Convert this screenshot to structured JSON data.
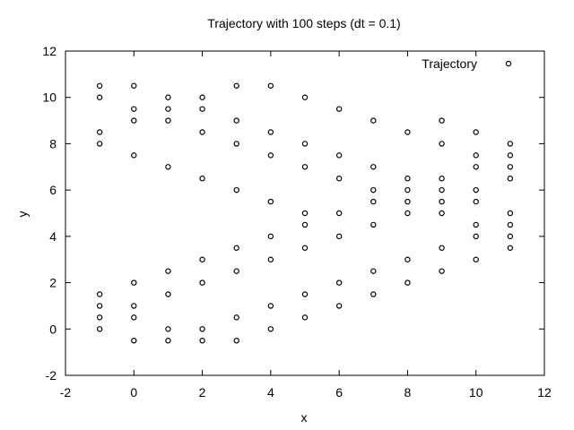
{
  "chart_data": {
    "type": "scatter",
    "title": "Trajectory with 100 steps (dt = 0.1)",
    "xlabel": "x",
    "ylabel": "y",
    "xlim": [
      -2,
      12
    ],
    "ylim": [
      -2,
      12
    ],
    "xticks": [
      "-2",
      "0",
      "2",
      "4",
      "6",
      "8",
      "10",
      "12"
    ],
    "yticks": [
      "-2",
      "0",
      "2",
      "4",
      "6",
      "8",
      "10",
      "12"
    ],
    "grid": false,
    "legend_position": "top-right",
    "marker": "open-circle",
    "colors": {
      "marker": "#000000",
      "axes": "#000000"
    },
    "series": [
      {
        "name": "Trajectory",
        "points": [
          [
            -1,
            10.5
          ],
          [
            -1,
            10
          ],
          [
            -1,
            8.5
          ],
          [
            -1,
            8
          ],
          [
            -1,
            1.5
          ],
          [
            -1,
            1
          ],
          [
            -1,
            0.5
          ],
          [
            -1,
            0
          ],
          [
            0,
            10.5
          ],
          [
            0,
            9.5
          ],
          [
            0,
            9
          ],
          [
            0,
            7.5
          ],
          [
            0,
            2
          ],
          [
            0,
            1
          ],
          [
            0,
            0.5
          ],
          [
            0,
            -0.5
          ],
          [
            1,
            10
          ],
          [
            1,
            9.5
          ],
          [
            1,
            9
          ],
          [
            1,
            7
          ],
          [
            1,
            2.5
          ],
          [
            1,
            1.5
          ],
          [
            1,
            0
          ],
          [
            1,
            -0.5
          ],
          [
            2,
            10
          ],
          [
            2,
            9.5
          ],
          [
            2,
            8.5
          ],
          [
            2,
            6.5
          ],
          [
            2,
            3
          ],
          [
            2,
            2
          ],
          [
            2,
            0
          ],
          [
            2,
            -0.5
          ],
          [
            3,
            10.5
          ],
          [
            3,
            9
          ],
          [
            3,
            8
          ],
          [
            3,
            6
          ],
          [
            3,
            3.5
          ],
          [
            3,
            2.5
          ],
          [
            3,
            0.5
          ],
          [
            3,
            -0.5
          ],
          [
            4,
            10.5
          ],
          [
            4,
            8.5
          ],
          [
            4,
            7.5
          ],
          [
            4,
            5.5
          ],
          [
            4,
            4
          ],
          [
            4,
            3
          ],
          [
            4,
            1
          ],
          [
            4,
            0
          ],
          [
            5,
            10
          ],
          [
            5,
            8
          ],
          [
            5,
            7
          ],
          [
            5,
            5
          ],
          [
            5,
            4.5
          ],
          [
            5,
            3.5
          ],
          [
            5,
            1.5
          ],
          [
            5,
            0.5
          ],
          [
            6,
            9.5
          ],
          [
            6,
            7.5
          ],
          [
            6,
            6.5
          ],
          [
            6,
            5
          ],
          [
            6,
            4
          ],
          [
            6,
            2
          ],
          [
            6,
            1
          ],
          [
            7,
            9
          ],
          [
            7,
            7
          ],
          [
            7,
            6
          ],
          [
            7,
            5.5
          ],
          [
            7,
            4.5
          ],
          [
            7,
            2.5
          ],
          [
            7,
            1.5
          ],
          [
            8,
            8.5
          ],
          [
            8,
            6.5
          ],
          [
            8,
            6
          ],
          [
            8,
            5.5
          ],
          [
            8,
            5
          ],
          [
            8,
            3
          ],
          [
            8,
            2
          ],
          [
            9,
            9
          ],
          [
            9,
            8
          ],
          [
            9,
            6.5
          ],
          [
            9,
            6
          ],
          [
            9,
            5.5
          ],
          [
            9,
            5
          ],
          [
            9,
            3.5
          ],
          [
            9,
            2.5
          ],
          [
            10,
            8.5
          ],
          [
            10,
            7.5
          ],
          [
            10,
            7
          ],
          [
            10,
            6
          ],
          [
            10,
            5.5
          ],
          [
            10,
            4.5
          ],
          [
            10,
            4
          ],
          [
            10,
            3
          ],
          [
            11,
            8
          ],
          [
            11,
            7.5
          ],
          [
            11,
            7
          ],
          [
            11,
            6.5
          ],
          [
            11,
            5
          ],
          [
            11,
            4.5
          ],
          [
            11,
            4
          ],
          [
            11,
            3.5
          ]
        ]
      }
    ]
  }
}
